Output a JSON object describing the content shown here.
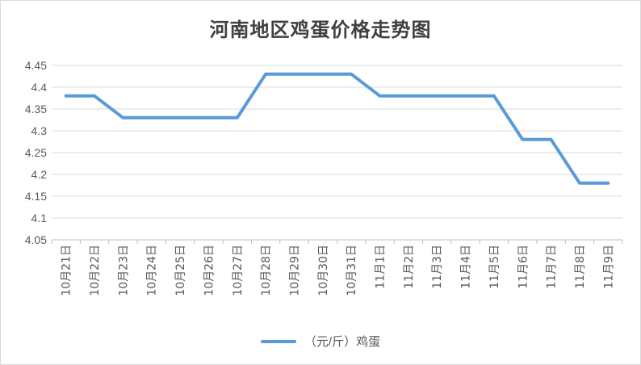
{
  "chart_data": {
    "type": "line",
    "title": "河南地区鸡蛋价格走势图",
    "categories": [
      "10月21日",
      "10月22日",
      "10月23日",
      "10月24日",
      "10月25日",
      "10月26日",
      "10月27日",
      "10月28日",
      "10月29日",
      "10月30日",
      "10月31日",
      "11月1日",
      "11月2日",
      "11月3日",
      "11月4日",
      "11月5日",
      "11月6日",
      "11月7日",
      "11月8日",
      "11月9日"
    ],
    "series": [
      {
        "name": "（元/斤）鸡蛋",
        "values": [
          4.38,
          4.38,
          4.33,
          4.33,
          4.33,
          4.33,
          4.33,
          4.43,
          4.43,
          4.43,
          4.43,
          4.38,
          4.38,
          4.38,
          4.38,
          4.38,
          4.28,
          4.28,
          4.18,
          4.18
        ]
      }
    ],
    "yticks": [
      "4.05",
      "4.1",
      "4.15",
      "4.2",
      "4.25",
      "4.3",
      "4.35",
      "4.4",
      "4.45"
    ],
    "ylim": [
      4.05,
      4.45
    ],
    "grid": true,
    "legend_position": "bottom",
    "color": "#5b9bd5"
  }
}
